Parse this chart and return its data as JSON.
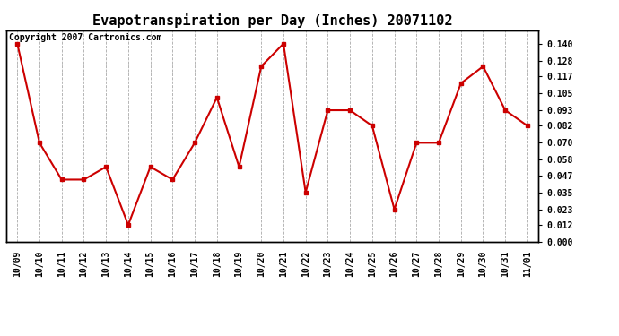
{
  "title": "Evapotranspiration per Day (Inches) 20071102",
  "copyright_text": "Copyright 2007 Cartronics.com",
  "x_labels": [
    "10/09",
    "10/10",
    "10/11",
    "10/12",
    "10/13",
    "10/14",
    "10/15",
    "10/16",
    "10/17",
    "10/18",
    "10/19",
    "10/20",
    "10/21",
    "10/22",
    "10/23",
    "10/24",
    "10/25",
    "10/26",
    "10/27",
    "10/28",
    "10/29",
    "10/30",
    "10/31",
    "11/01"
  ],
  "y_values": [
    0.14,
    0.07,
    0.044,
    0.044,
    0.053,
    0.012,
    0.053,
    0.044,
    0.07,
    0.102,
    0.053,
    0.124,
    0.14,
    0.035,
    0.093,
    0.093,
    0.082,
    0.023,
    0.07,
    0.07,
    0.112,
    0.124,
    0.093,
    0.082
  ],
  "line_color": "#cc0000",
  "marker": "s",
  "marker_size": 3,
  "line_width": 1.5,
  "ylim": [
    0.0,
    0.1495
  ],
  "yticks": [
    0.0,
    0.012,
    0.023,
    0.035,
    0.047,
    0.058,
    0.07,
    0.082,
    0.093,
    0.105,
    0.117,
    0.128,
    0.14
  ],
  "background_color": "#ffffff",
  "grid_color": "#aaaaaa",
  "title_fontsize": 11,
  "tick_fontsize": 7,
  "copyright_fontsize": 7
}
